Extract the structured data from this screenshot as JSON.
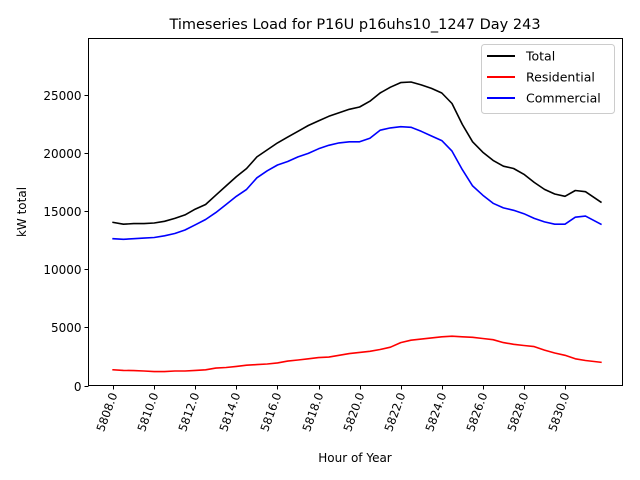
{
  "chart_data": {
    "type": "line",
    "title": "Timeseries Load for P16U p16uhs10_1247  Day 243",
    "xlabel": "Hour of Year",
    "ylabel": "kW total",
    "xlim": [
      5806.8,
      5832.8
    ],
    "ylim": [
      0,
      29900
    ],
    "grid": false,
    "legend_position": "top-right",
    "xticks": [
      5808,
      5810,
      5812,
      5814,
      5816,
      5818,
      5820,
      5822,
      5824,
      5826,
      5828,
      5830
    ],
    "xtick_labels": [
      "5808.0",
      "5810.0",
      "5812.0",
      "5814.0",
      "5816.0",
      "5818.0",
      "5820.0",
      "5822.0",
      "5824.0",
      "5826.0",
      "5828.0",
      "5830.0"
    ],
    "yticks": [
      0,
      5000,
      10000,
      15000,
      20000,
      25000
    ],
    "ytick_labels": [
      "0",
      "5000",
      "10000",
      "15000",
      "20000",
      "25000"
    ],
    "x": [
      5808,
      5808.5,
      5809,
      5809.5,
      5810,
      5810.5,
      5811,
      5811.5,
      5812,
      5812.5,
      5813,
      5813.5,
      5814,
      5814.5,
      5815,
      5815.5,
      5816,
      5816.5,
      5817,
      5817.5,
      5818,
      5818.5,
      5819,
      5819.5,
      5820,
      5820.5,
      5821,
      5821.5,
      5822,
      5822.5,
      5823,
      5823.5,
      5824,
      5824.5,
      5825,
      5825.5,
      5826,
      5826.5,
      5827,
      5827.5,
      5828,
      5828.5,
      5829,
      5829.5,
      5830,
      5830.5,
      5831,
      5831.75
    ],
    "series": [
      {
        "name": "Total",
        "color": "#000000",
        "values": [
          14050,
          13900,
          13950,
          13950,
          14000,
          14150,
          14400,
          14700,
          15200,
          15600,
          16400,
          17200,
          18000,
          18700,
          19700,
          20300,
          20900,
          21400,
          21900,
          22400,
          22800,
          23200,
          23500,
          23800,
          24000,
          24500,
          25200,
          25700,
          26100,
          26150,
          25900,
          25600,
          25200,
          24300,
          22500,
          21000,
          20100,
          19400,
          18900,
          18700,
          18200,
          17500,
          16900,
          16500,
          16300,
          16800,
          16700,
          15800
        ]
      },
      {
        "name": "Residential",
        "color": "#ff0000",
        "values": [
          1350,
          1300,
          1280,
          1250,
          1200,
          1200,
          1250,
          1250,
          1300,
          1350,
          1500,
          1550,
          1650,
          1750,
          1800,
          1850,
          1950,
          2100,
          2200,
          2300,
          2400,
          2450,
          2600,
          2750,
          2850,
          2950,
          3100,
          3300,
          3700,
          3900,
          4000,
          4100,
          4200,
          4250,
          4200,
          4150,
          4050,
          3950,
          3700,
          3550,
          3450,
          3350,
          3050,
          2800,
          2600,
          2300,
          2150,
          2000
        ]
      },
      {
        "name": "Commercial",
        "color": "#0000ff",
        "values": [
          12650,
          12600,
          12650,
          12700,
          12750,
          12900,
          13100,
          13400,
          13850,
          14300,
          14900,
          15600,
          16300,
          16900,
          17900,
          18500,
          19000,
          19300,
          19700,
          20000,
          20400,
          20700,
          20900,
          21000,
          21000,
          21300,
          22000,
          22200,
          22300,
          22250,
          21900,
          21500,
          21100,
          20200,
          18600,
          17200,
          16400,
          15700,
          15300,
          15100,
          14800,
          14400,
          14100,
          13900,
          13900,
          14500,
          14600,
          13900
        ]
      }
    ]
  }
}
